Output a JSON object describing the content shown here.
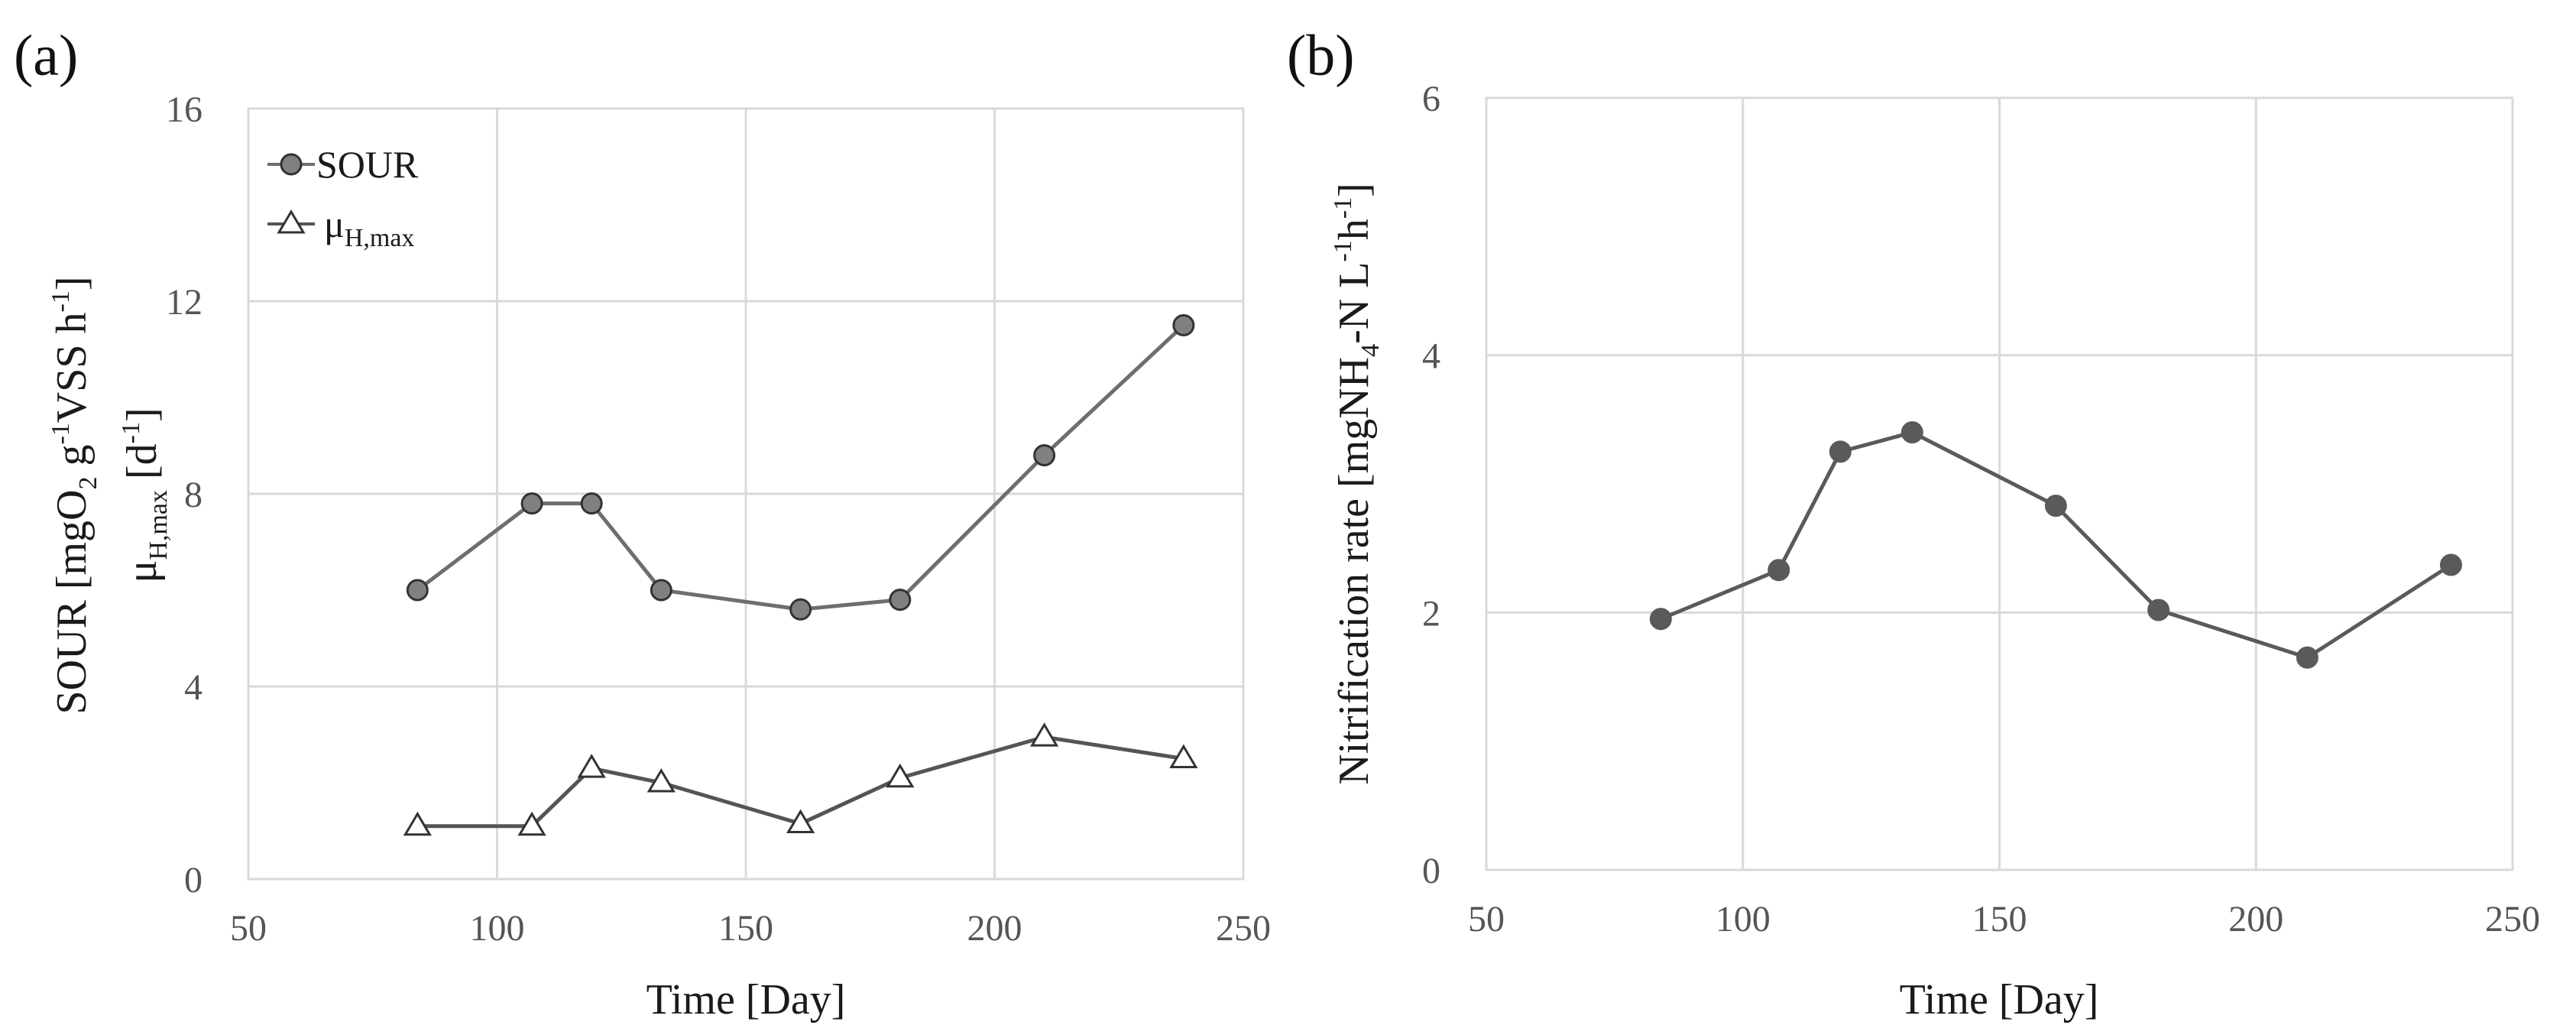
{
  "chart_data": [
    {
      "panel_label": "(a)",
      "type": "line",
      "xlabel": "Time [Day]",
      "ylabel_line1": {
        "main": "SOUR [mgO",
        "s1": "2",
        "mid": " g",
        "p1": "-1",
        "mid2": "VSS h",
        "p2": "-1",
        "end": "]"
      },
      "ylabel_line2": {
        "main": "μ",
        "s1": "H,max",
        "mid": " [d",
        "p1": "-1",
        "end": "]"
      },
      "xlim": [
        50,
        250
      ],
      "ylim": [
        0,
        16
      ],
      "xticks": [
        "50",
        "100",
        "150",
        "200",
        "250"
      ],
      "yticks": [
        "0",
        "4",
        "8",
        "12",
        "16"
      ],
      "grid": true,
      "legend_position": "top-left",
      "series": [
        {
          "name": "SOUR",
          "marker": "circle",
          "color": "#808080",
          "line_color": "#6e6e6e",
          "x": [
            84,
            107,
            119,
            133,
            161,
            181,
            210,
            238
          ],
          "y": [
            6.0,
            7.8,
            7.8,
            6.0,
            5.6,
            5.8,
            8.8,
            11.5
          ]
        },
        {
          "name": "μ",
          "name_sub": "H,max",
          "marker": "triangle",
          "color": "#ffffff",
          "line_color": "#555555",
          "x": [
            84,
            107,
            119,
            133,
            161,
            181,
            210,
            238
          ],
          "y": [
            1.1,
            1.1,
            2.3,
            2.0,
            1.15,
            2.1,
            2.95,
            2.5
          ]
        }
      ]
    },
    {
      "panel_label": "(b)",
      "type": "line",
      "xlabel": "Time [Day]",
      "ylabel": {
        "main": "Nitrification rate [mgNH",
        "s1": "4",
        "mid": "-N L",
        "p1": "-1",
        "mid2": "h",
        "p2": "-1",
        "end": "]"
      },
      "xlim": [
        50,
        250
      ],
      "ylim": [
        0,
        6
      ],
      "xticks": [
        "50",
        "100",
        "150",
        "200",
        "250"
      ],
      "yticks": [
        "0",
        "2",
        "4",
        "6"
      ],
      "grid": true,
      "series": [
        {
          "name": "Nitrification rate",
          "marker": "circle",
          "color": "#5a5a5a",
          "line_color": "#5a5a5a",
          "x": [
            84,
            107,
            119,
            133,
            161,
            181,
            210,
            238
          ],
          "y": [
            1.95,
            2.33,
            3.25,
            3.4,
            2.83,
            2.02,
            1.65,
            2.37
          ]
        }
      ]
    }
  ]
}
